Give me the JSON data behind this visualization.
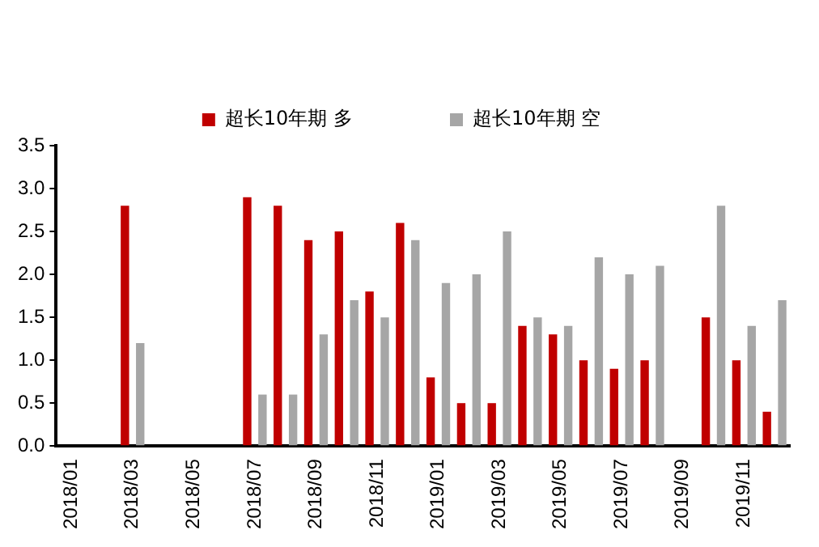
{
  "chart_data": {
    "type": "bar",
    "categories": [
      "2018/01",
      null,
      "2018/03",
      null,
      "2018/05",
      null,
      "2018/07",
      null,
      "2018/09",
      null,
      "2018/11",
      null,
      "2019/01",
      null,
      "2019/03",
      null,
      "2019/05",
      null,
      "2019/07",
      null,
      "2019/09",
      null,
      "2019/11",
      null
    ],
    "series": [
      {
        "name": "超长10年期 多",
        "color": "#c00000",
        "values": [
          null,
          null,
          2.8,
          null,
          null,
          null,
          2.9,
          2.8,
          2.4,
          2.5,
          1.8,
          2.6,
          0.8,
          0.5,
          0.5,
          1.4,
          1.3,
          1.0,
          0.9,
          1.0,
          null,
          1.5,
          1.0,
          0.4
        ]
      },
      {
        "name": "超长10年期 空",
        "color": "#a6a6a6",
        "values": [
          null,
          null,
          1.2,
          null,
          null,
          null,
          0.6,
          0.6,
          1.3,
          1.7,
          1.5,
          2.4,
          1.9,
          2.0,
          2.5,
          1.5,
          1.4,
          2.2,
          2.0,
          2.1,
          null,
          2.8,
          1.4,
          1.7
        ]
      }
    ],
    "ylim": [
      0,
      3.5
    ],
    "yticks": [
      {
        "value": 0,
        "label": "0.0"
      },
      0.5,
      {
        "value": 1,
        "label": "1.0"
      },
      1.5,
      {
        "value": 2,
        "label": "2.0"
      },
      2.5,
      {
        "value": 3,
        "label": "3.0"
      },
      3.5
    ],
    "grid": false,
    "legend": "top"
  }
}
